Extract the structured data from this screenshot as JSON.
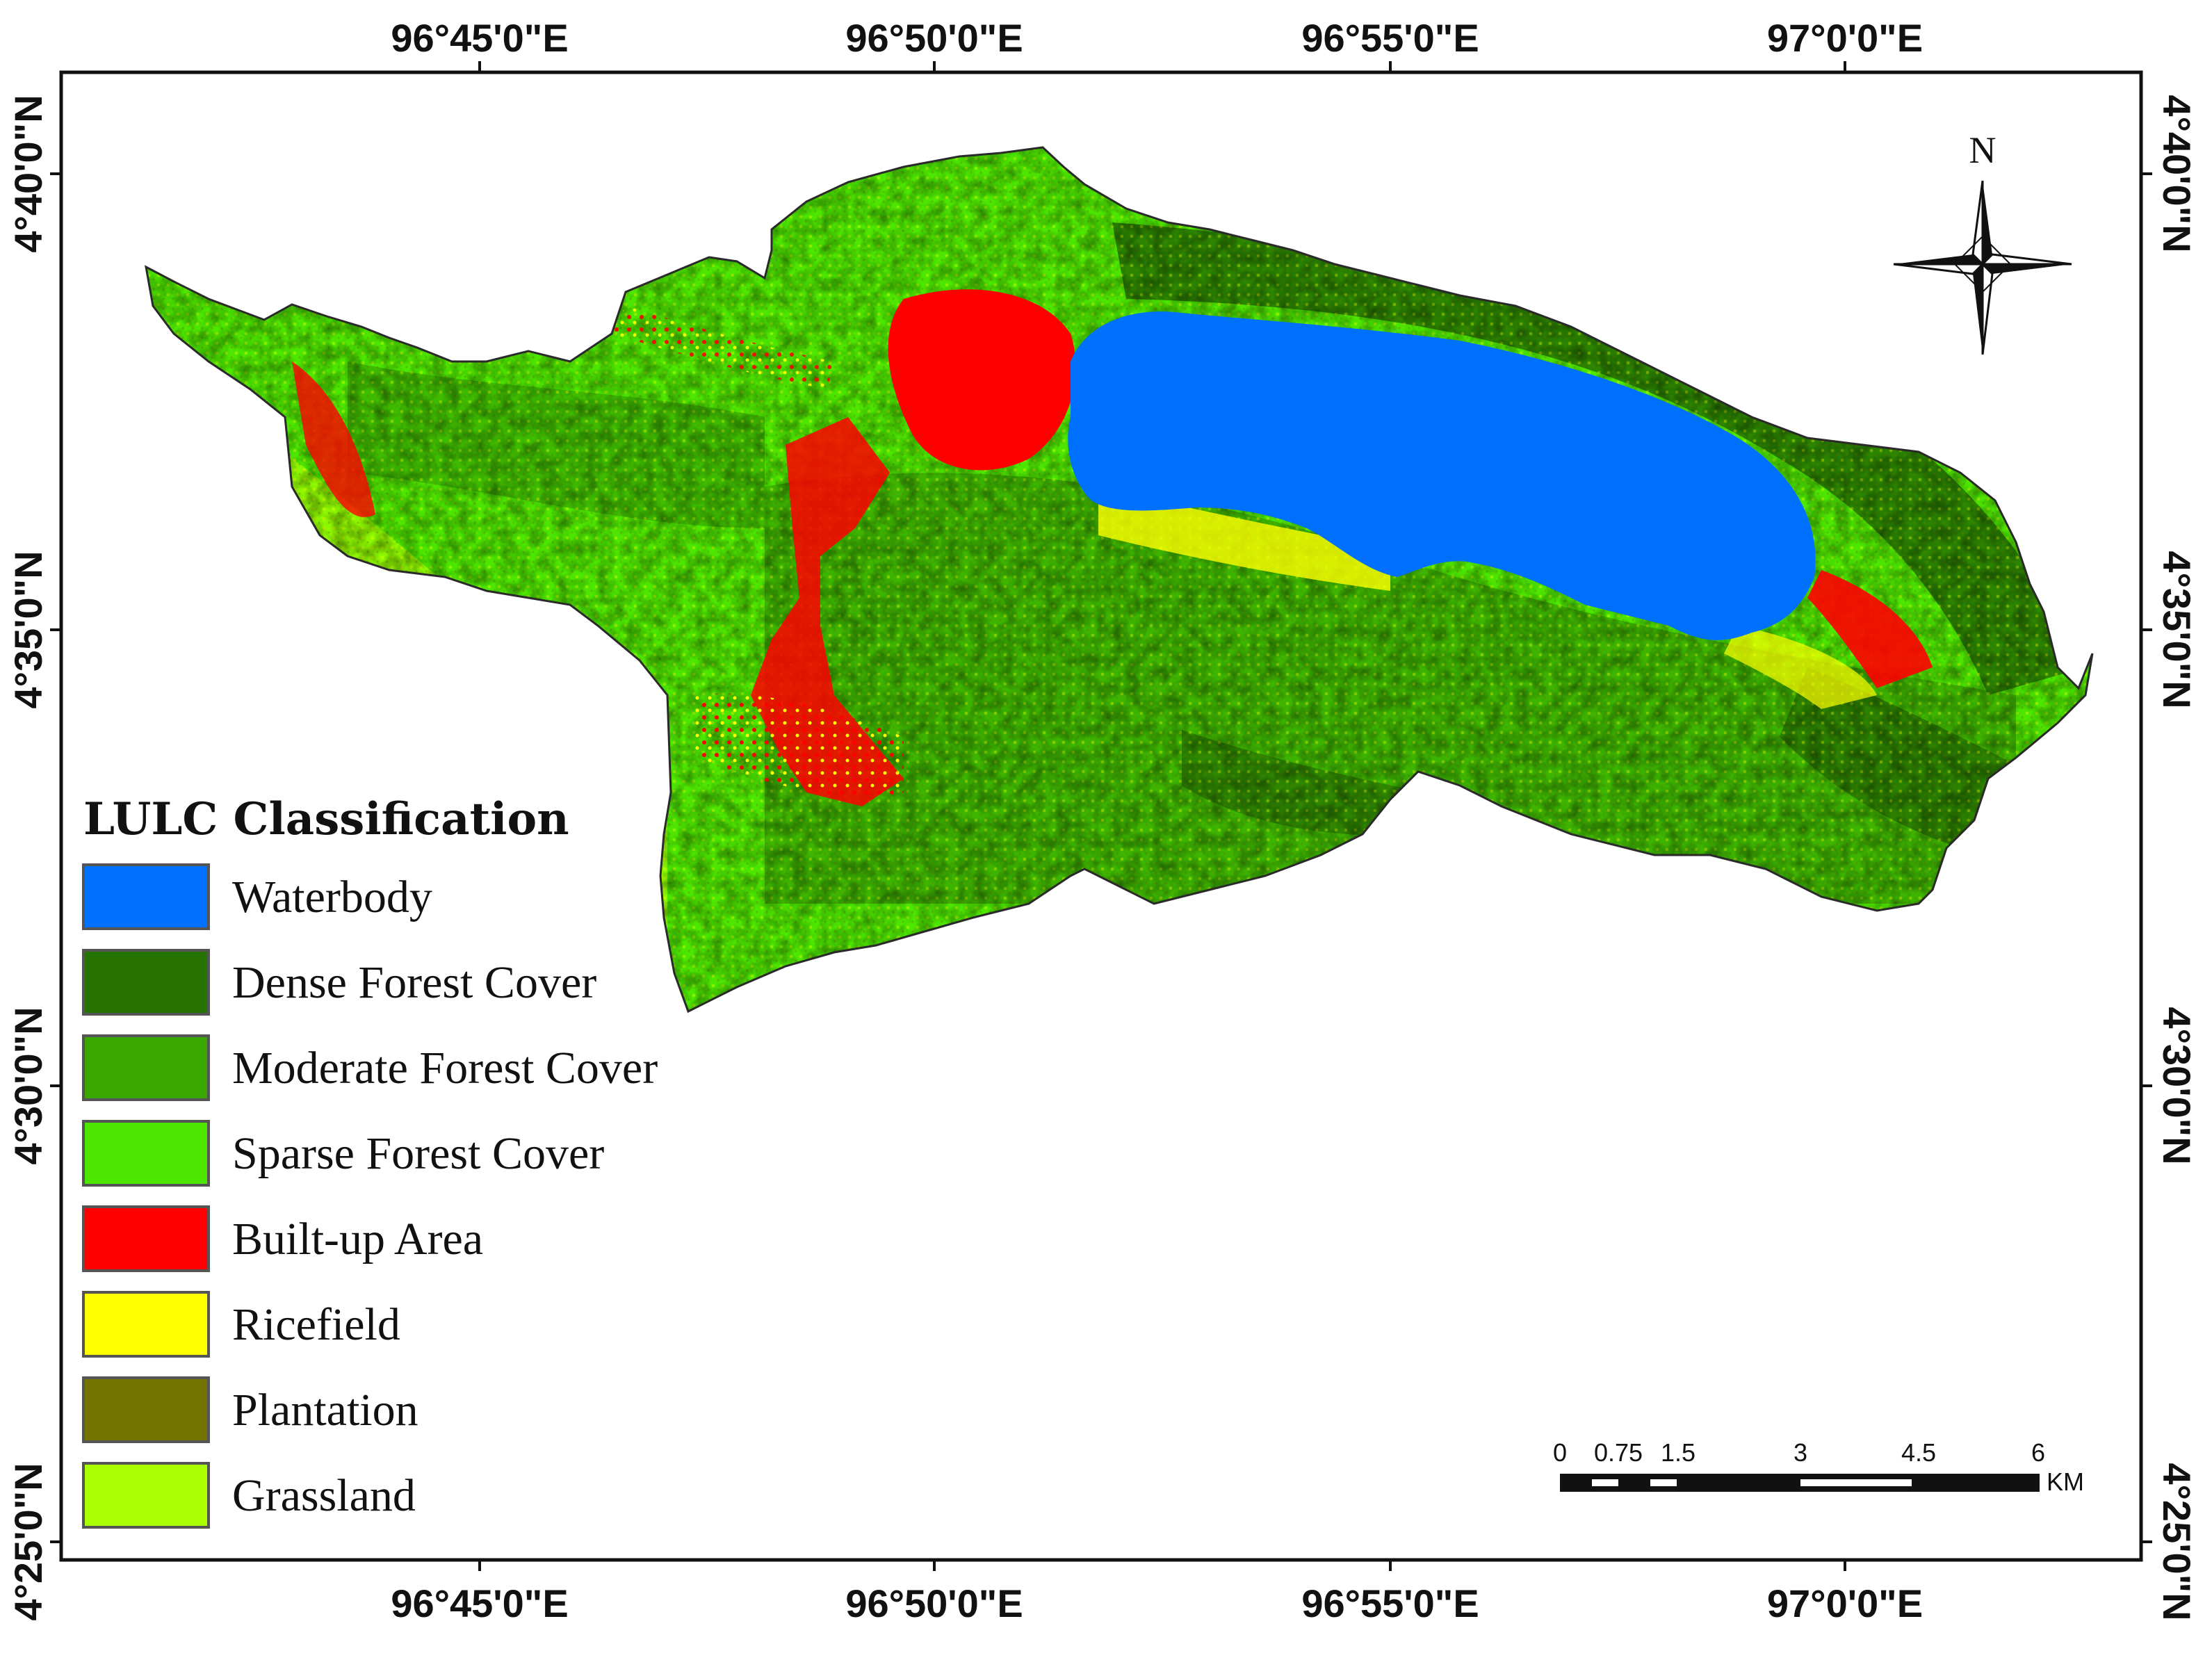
{
  "map": {
    "graticule": {
      "top_labels": [
        "96°45'0\"E",
        "96°50'0\"E",
        "96°55'0\"E",
        "97°0'0\"E"
      ],
      "bottom_labels": [
        "96°45'0\"E",
        "96°50'0\"E",
        "96°55'0\"E",
        "97°0'0\"E"
      ],
      "left_labels": [
        "4°40'0\"N",
        "4°35'0\"N",
        "4°30'0\"N",
        "4°25'0\"N"
      ],
      "right_labels": [
        "4°40'0\"N",
        "4°35'0\"N",
        "4°30'0\"N",
        "4°25'0\"N"
      ]
    },
    "north_arrow": {
      "label": "N",
      "icon": "compass-rose-icon"
    },
    "scale_bar": {
      "ticks": [
        "0",
        "0.75",
        "1.5",
        "3",
        "4.5",
        "6"
      ],
      "unit": "KM"
    },
    "legend": {
      "title": "LULC Classification",
      "items": [
        {
          "label": "Waterbody",
          "color": "#0070ff"
        },
        {
          "label": "Dense Forest Cover",
          "color": "#267300"
        },
        {
          "label": "Moderate Forest Cover",
          "color": "#38a800"
        },
        {
          "label": "Sparse Forest Cover",
          "color": "#4ce600"
        },
        {
          "label": "Built-up Area",
          "color": "#ff0000"
        },
        {
          "label": "Ricefield",
          "color": "#ffff00"
        },
        {
          "label": "Plantation",
          "color": "#737300"
        },
        {
          "label": "Grassland",
          "color": "#aaff00"
        }
      ]
    }
  }
}
